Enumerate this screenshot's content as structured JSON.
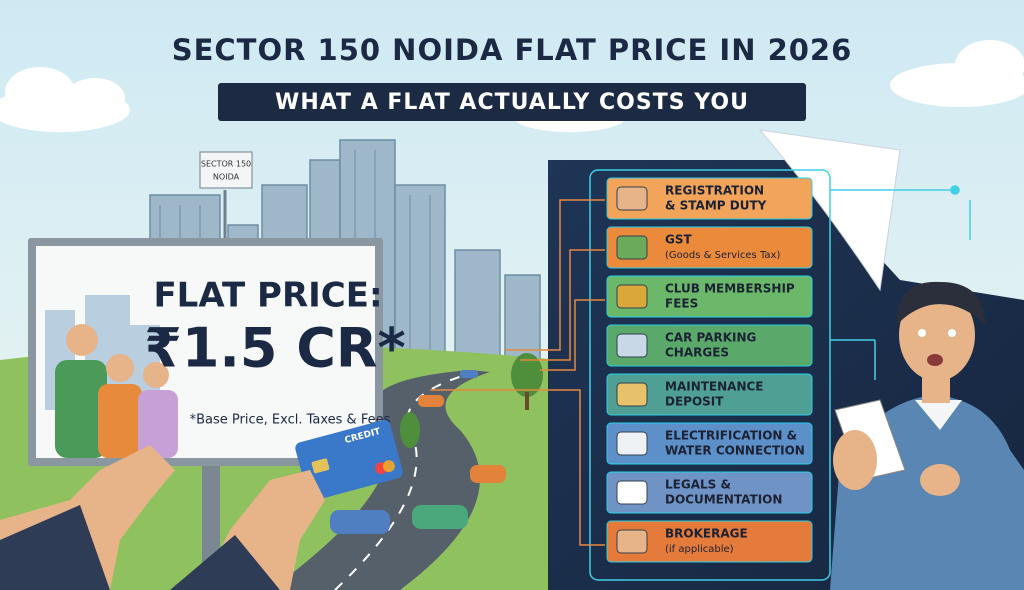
{
  "header": {
    "title": "SECTOR 150 NOIDA FLAT PRICE IN 2026",
    "subtitle": "WHAT A FLAT ACTUALLY COSTS YOU"
  },
  "sign": [
    "SECTOR 150",
    "NOIDA"
  ],
  "billboard": {
    "heading": "FLAT PRICE:",
    "price": "₹1.5 CR*",
    "note": "*Base Price, Excl. Taxes & Fees"
  },
  "card": "CREDIT",
  "costs": [
    {
      "lines": [
        "REGISTRATION",
        "& STAMP DUTY"
      ]
    },
    {
      "lines": [
        "GST",
        "(Goods & Services Tax)"
      ]
    },
    {
      "lines": [
        "CLUB MEMBERSHIP",
        "FEES"
      ]
    },
    {
      "lines": [
        "CAR PARKING",
        "CHARGES"
      ]
    },
    {
      "lines": [
        "MAINTENANCE",
        "DEPOSIT"
      ]
    },
    {
      "lines": [
        "ELECTRIFICATION &",
        "WATER CONNECTION"
      ]
    },
    {
      "lines": [
        "LEGALS &",
        "DOCUMENTATION"
      ]
    },
    {
      "lines": [
        "BROKERAGE",
        "(if applicable)"
      ]
    }
  ]
}
